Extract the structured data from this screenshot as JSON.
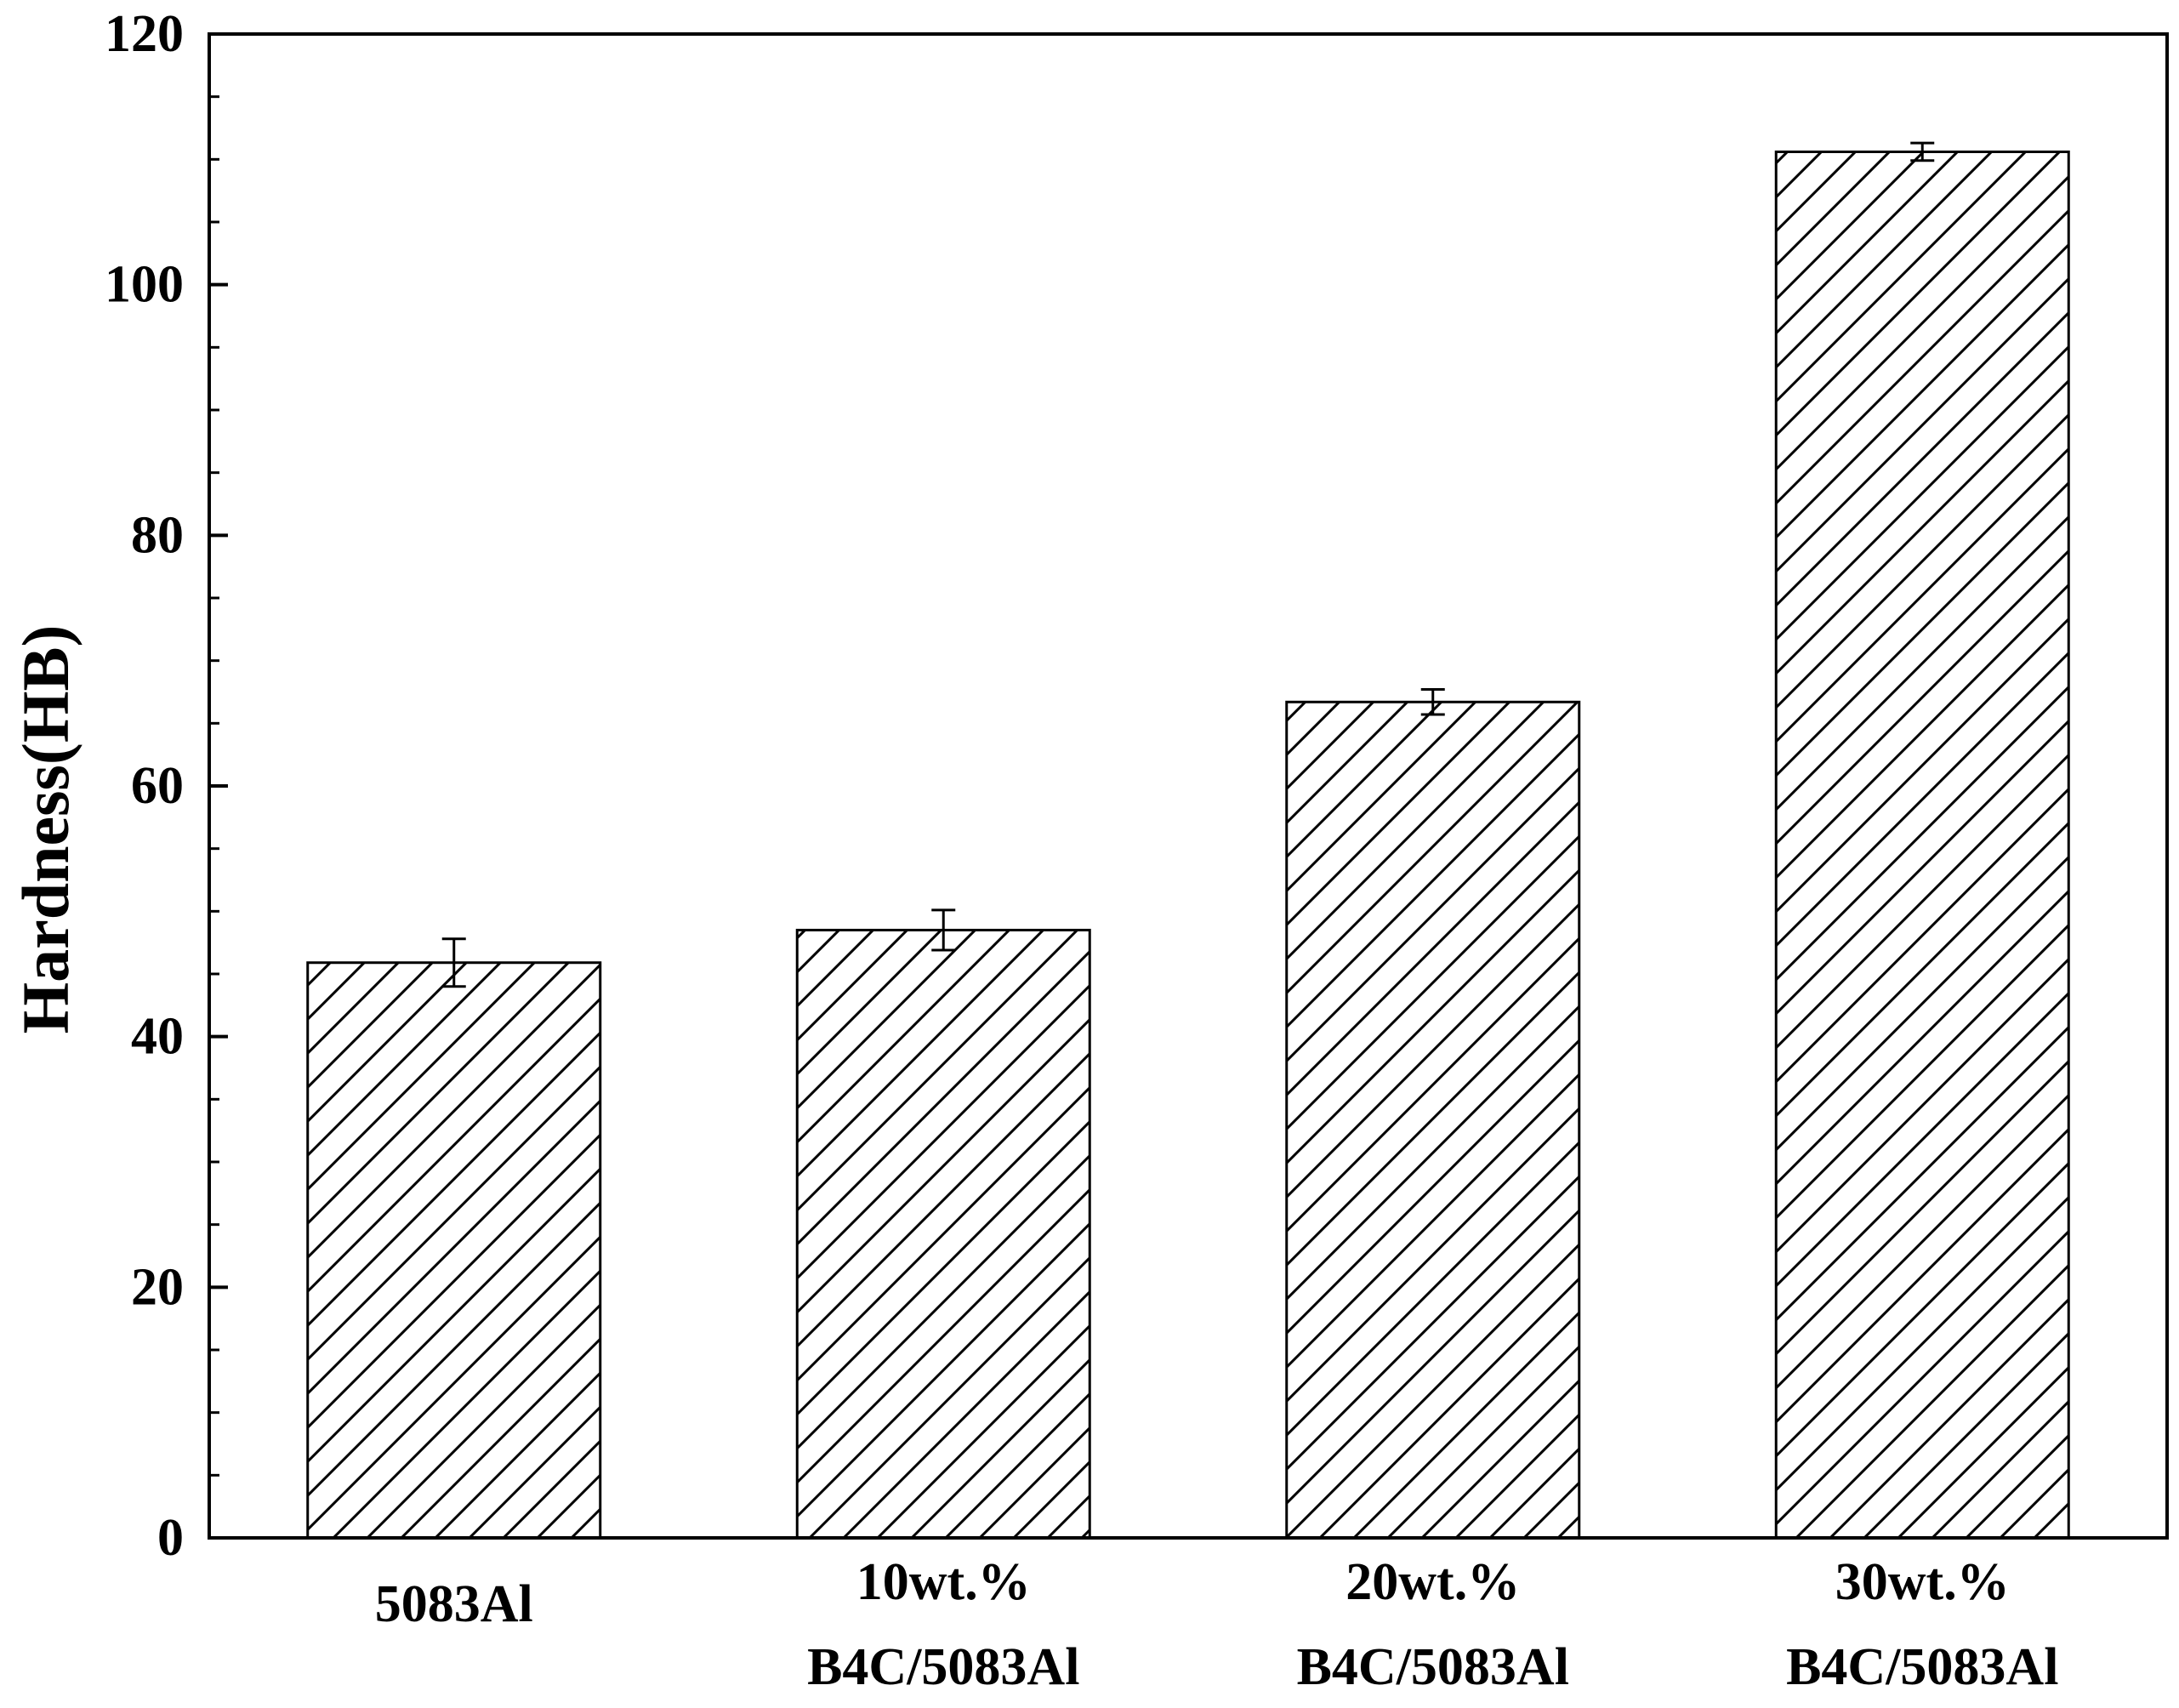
{
  "chart_data": {
    "type": "bar",
    "title": "",
    "xlabel": "",
    "ylabel": "Hardness(HB)",
    "ylim": [
      0,
      120
    ],
    "yticks": [
      0,
      20,
      40,
      60,
      80,
      100,
      120
    ],
    "yticks_minor_step": 5,
    "grid": false,
    "legend": "none",
    "bar_fill": "hatched",
    "categories": [
      [
        "5083Al"
      ],
      [
        "10wt.%",
        "B4C/5083Al"
      ],
      [
        "20wt.%",
        "B4C/5083Al"
      ],
      [
        "30wt.%",
        "B4C/5083Al"
      ]
    ],
    "values": [
      45.9,
      48.5,
      66.7,
      110.6
    ],
    "error": [
      1.9,
      1.6,
      1.0,
      0.7
    ],
    "colors": {
      "bar_edge": "#000000",
      "hatch": "#000000",
      "background": "#ffffff"
    }
  }
}
